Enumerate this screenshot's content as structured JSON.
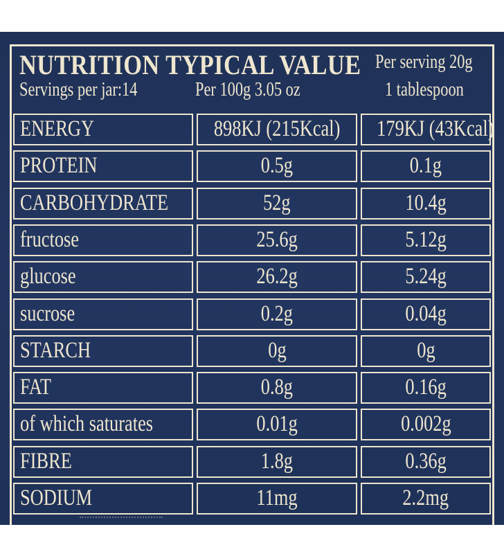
{
  "header": {
    "title": "NUTRITION TYPICAL VALUE",
    "per_serving": "Per serving 20g",
    "servings_per_jar": "Servings per jar:14",
    "per_100g": "Per 100g 3.05 oz",
    "tablespoon": "1 tablespoon"
  },
  "colors": {
    "background": "#223661",
    "text_and_lines": "#efe6cf"
  },
  "rows": [
    {
      "name": "ENERGY",
      "per100": "898KJ (215Kcal)",
      "serving": "179KJ (43Kcal)"
    },
    {
      "name": "PROTEIN",
      "per100": "0.5g",
      "serving": "0.1g"
    },
    {
      "name": "CARBOHYDRATE",
      "per100": "52g",
      "serving": "10.4g"
    },
    {
      "name": "fructose",
      "per100": "25.6g",
      "serving": "5.12g"
    },
    {
      "name": "glucose",
      "per100": "26.2g",
      "serving": "5.24g"
    },
    {
      "name": "sucrose",
      "per100": "0.2g",
      "serving": "0.04g"
    },
    {
      "name": "STARCH",
      "per100": "0g",
      "serving": "0g"
    },
    {
      "name": "FAT",
      "per100": "0.8g",
      "serving": "0.16g"
    },
    {
      "name": "of which saturates",
      "per100": "0.01g",
      "serving": "0.002g"
    },
    {
      "name": "FIBRE",
      "per100": "1.8g",
      "serving": "0.36g"
    },
    {
      "name": "SODIUM",
      "per100": "11mg",
      "serving": "2.2mg"
    }
  ]
}
